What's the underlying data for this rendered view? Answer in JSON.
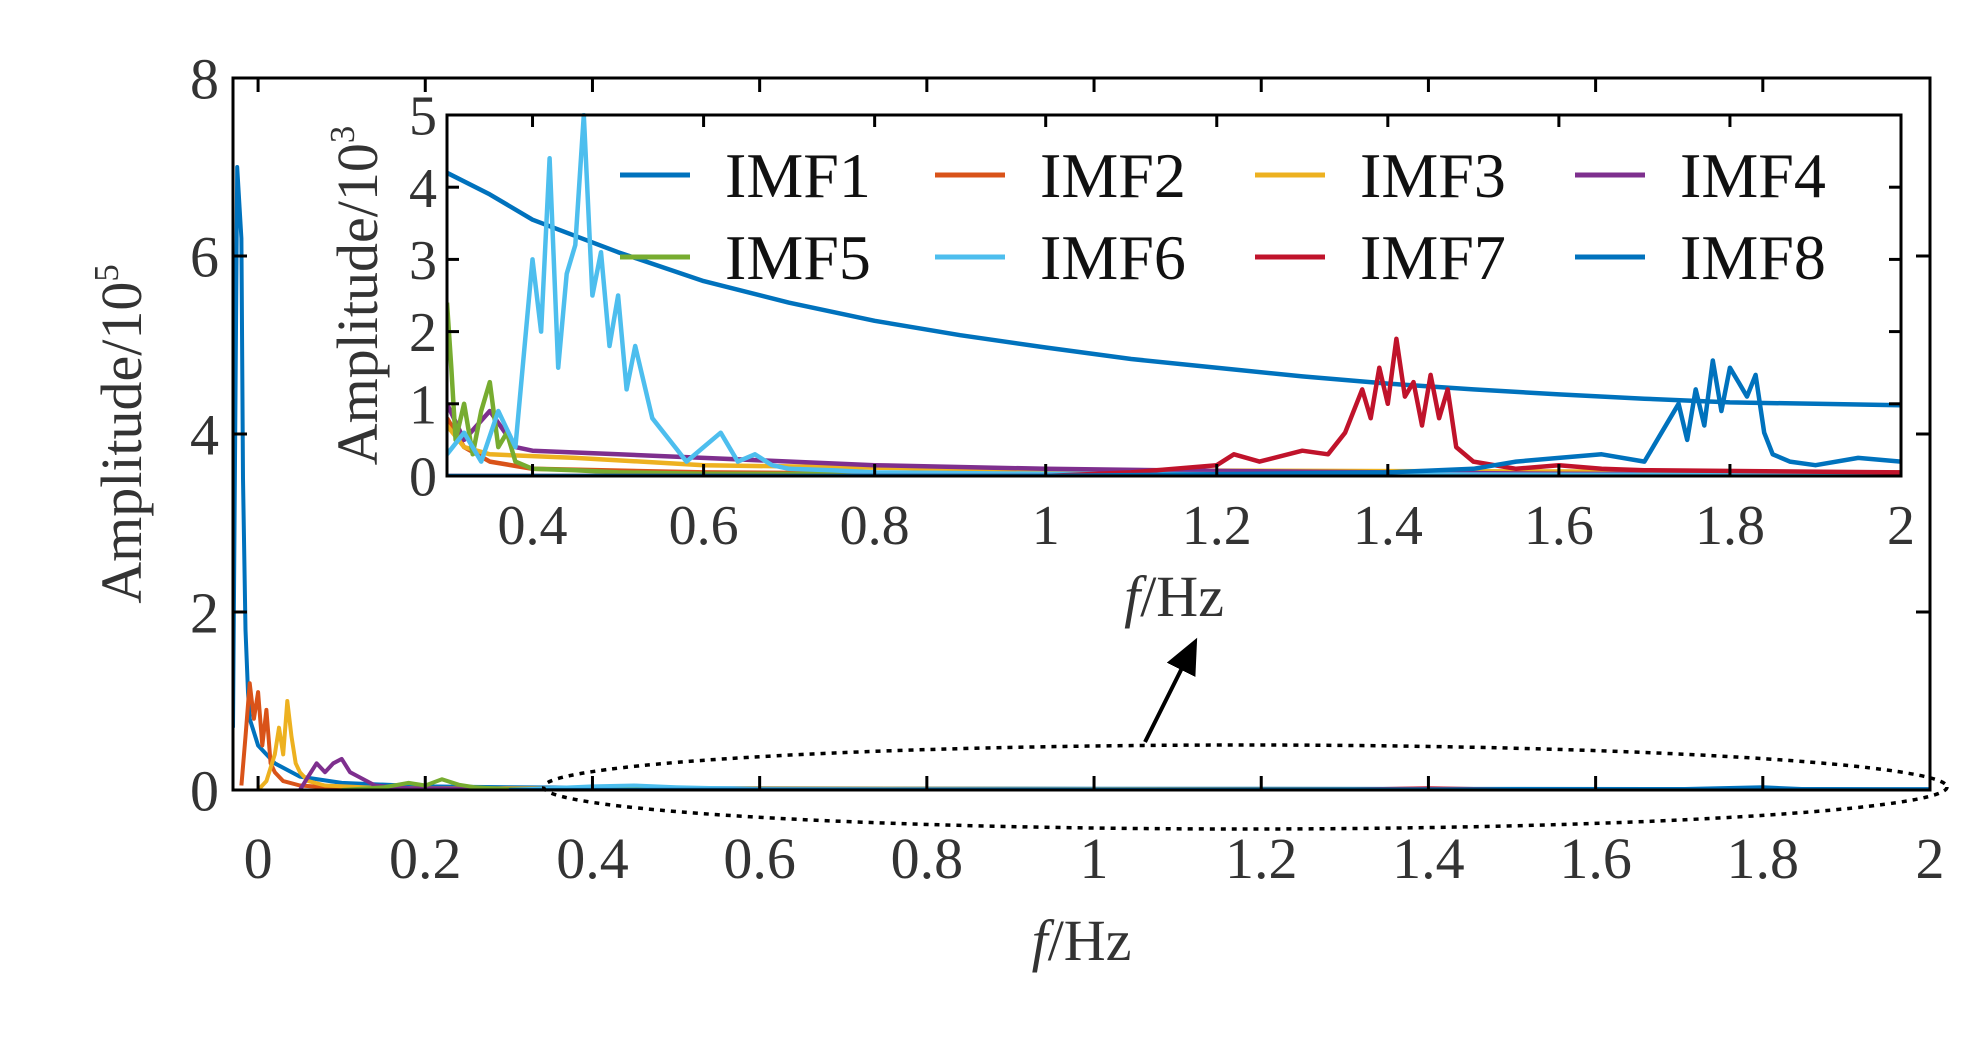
{
  "chart_data": [
    {
      "id": "main",
      "type": "line",
      "xlabel": "Hz",
      "xlabel_italic": "f",
      "xlabel_sep": "/",
      "ylabel": "Amplitude/10",
      "ylabel_exp": "5",
      "xlim": [
        -0.03,
        2.0
      ],
      "ylim": [
        0,
        8
      ],
      "xticks": [
        0,
        0.2,
        0.4,
        0.6,
        0.8,
        1,
        1.2,
        1.4,
        1.6,
        1.8,
        2
      ],
      "xtick_labels": [
        "0",
        "0.2",
        "0.4",
        "0.6",
        "0.8",
        "1",
        "1.2",
        "1.4",
        "1.6",
        "1.8",
        "2"
      ],
      "yticks": [
        0,
        2,
        4,
        6,
        8
      ],
      "ytick_labels": [
        "0",
        "2",
        "4",
        "6",
        "8"
      ],
      "series": [
        {
          "name": "IMF1",
          "color": "#0072BD",
          "x": [
            -0.03,
            -0.025,
            -0.02,
            -0.018,
            -0.015,
            -0.012,
            -0.01,
            0.0,
            0.02,
            0.05,
            0.1,
            0.2,
            0.3,
            0.5,
            1.0,
            1.5,
            2.0
          ],
          "y": [
            0.7,
            7.0,
            6.2,
            3.5,
            1.8,
            1.1,
            0.8,
            0.5,
            0.3,
            0.15,
            0.08,
            0.04,
            0.03,
            0.02,
            0.015,
            0.012,
            0.01
          ]
        },
        {
          "name": "IMF2",
          "color": "#D95319",
          "x": [
            -0.02,
            -0.015,
            -0.01,
            -0.005,
            0.0,
            0.005,
            0.01,
            0.015,
            0.02,
            0.03,
            0.05,
            0.1,
            2.0
          ],
          "y": [
            0.05,
            0.6,
            1.2,
            0.8,
            1.1,
            0.5,
            0.9,
            0.3,
            0.2,
            0.1,
            0.05,
            0.02,
            0.0
          ]
        },
        {
          "name": "IMF3",
          "color": "#EDB120",
          "x": [
            0.0,
            0.01,
            0.02,
            0.025,
            0.03,
            0.035,
            0.04,
            0.045,
            0.05,
            0.06,
            0.08,
            0.15,
            2.0
          ],
          "y": [
            0.0,
            0.1,
            0.4,
            0.7,
            0.4,
            1.0,
            0.6,
            0.3,
            0.2,
            0.1,
            0.05,
            0.02,
            0.0
          ]
        },
        {
          "name": "IMF4",
          "color": "#7E2F8E",
          "x": [
            0.05,
            0.06,
            0.07,
            0.08,
            0.09,
            0.1,
            0.11,
            0.12,
            0.14,
            0.18,
            0.3,
            2.0
          ],
          "y": [
            0.0,
            0.15,
            0.3,
            0.2,
            0.3,
            0.35,
            0.2,
            0.15,
            0.05,
            0.02,
            0.01,
            0.0
          ]
        },
        {
          "name": "IMF5",
          "color": "#77AC30",
          "x": [
            0.1,
            0.15,
            0.18,
            0.2,
            0.22,
            0.24,
            0.26,
            0.3,
            2.0
          ],
          "y": [
            0.0,
            0.03,
            0.08,
            0.05,
            0.12,
            0.06,
            0.03,
            0.01,
            0.0
          ]
        },
        {
          "name": "IMF6",
          "color": "#4DBEEE",
          "x": [
            0.3,
            0.4,
            0.45,
            0.5,
            0.6,
            2.0
          ],
          "y": [
            0.0,
            0.04,
            0.05,
            0.03,
            0.01,
            0.0
          ]
        },
        {
          "name": "IMF7",
          "color": "#C0132B",
          "x": [
            0.3,
            1.3,
            1.4,
            1.5,
            2.0
          ],
          "y": [
            0.0,
            0.005,
            0.02,
            0.005,
            0.0
          ]
        },
        {
          "name": "IMF8",
          "color": "#0072BD",
          "x": [
            0.3,
            1.7,
            1.8,
            1.85,
            2.0
          ],
          "y": [
            0.0,
            0.01,
            0.03,
            0.01,
            0.0
          ]
        }
      ],
      "annotation": {
        "type": "dashed-ellipse",
        "x_range": [
          0.35,
          2.0
        ],
        "y_center": 0.0,
        "arrow_to": "inset",
        "text": ""
      }
    },
    {
      "id": "inset",
      "type": "line",
      "xlabel": "Hz",
      "xlabel_italic": "f",
      "xlabel_sep": "/",
      "ylabel": "Amplitude/10",
      "ylabel_exp": "3",
      "xlim": [
        0.3,
        2.0
      ],
      "ylim": [
        0,
        5
      ],
      "xticks": [
        0.4,
        0.6,
        0.8,
        1,
        1.2,
        1.4,
        1.6,
        1.8,
        2
      ],
      "xtick_labels": [
        "0.4",
        "0.6",
        "0.8",
        "1",
        "1.2",
        "1.4",
        "1.6",
        "1.8",
        "2"
      ],
      "yticks": [
        0,
        1,
        2,
        3,
        4,
        5
      ],
      "ytick_labels": [
        "0",
        "1",
        "2",
        "3",
        "4",
        "5"
      ],
      "legend": {
        "placement": "top-right",
        "columns": 4
      },
      "series": [
        {
          "name": "IMF1",
          "color": "#0072BD",
          "x": [
            0.3,
            0.35,
            0.4,
            0.5,
            0.6,
            0.7,
            0.8,
            0.9,
            1.0,
            1.1,
            1.2,
            1.3,
            1.4,
            1.5,
            1.6,
            1.7,
            1.8,
            1.9,
            2.0
          ],
          "y": [
            4.2,
            3.9,
            3.55,
            3.1,
            2.7,
            2.4,
            2.15,
            1.95,
            1.78,
            1.62,
            1.5,
            1.38,
            1.28,
            1.2,
            1.13,
            1.07,
            1.02,
            1.0,
            0.98
          ]
        },
        {
          "name": "IMF2",
          "color": "#D95319",
          "x": [
            0.3,
            0.32,
            0.35,
            0.4,
            0.6,
            1.0,
            2.0
          ],
          "y": [
            0.8,
            0.4,
            0.2,
            0.1,
            0.05,
            0.02,
            0.01
          ]
        },
        {
          "name": "IMF3",
          "color": "#EDB120",
          "x": [
            0.3,
            0.32,
            0.35,
            0.45,
            0.6,
            1.0,
            2.0
          ],
          "y": [
            0.7,
            0.4,
            0.3,
            0.25,
            0.15,
            0.08,
            0.05
          ]
        },
        {
          "name": "IMF4",
          "color": "#7E2F8E",
          "x": [
            0.3,
            0.32,
            0.35,
            0.38,
            0.4,
            0.5,
            0.6,
            0.8,
            1.0,
            1.2,
            1.4,
            1.6,
            2.0
          ],
          "y": [
            1.0,
            0.5,
            0.9,
            0.4,
            0.35,
            0.3,
            0.25,
            0.15,
            0.1,
            0.07,
            0.05,
            0.03,
            0.02
          ]
        },
        {
          "name": "IMF5",
          "color": "#77AC30",
          "x": [
            0.3,
            0.305,
            0.31,
            0.32,
            0.33,
            0.34,
            0.35,
            0.36,
            0.37,
            0.38,
            0.4,
            0.45,
            0.5,
            0.6,
            2.0
          ],
          "y": [
            2.4,
            1.5,
            0.5,
            1.0,
            0.3,
            0.9,
            1.3,
            0.4,
            0.6,
            0.2,
            0.1,
            0.08,
            0.05,
            0.03,
            0.01
          ]
        },
        {
          "name": "IMF6",
          "color": "#4DBEEE",
          "x": [
            0.3,
            0.32,
            0.34,
            0.36,
            0.38,
            0.4,
            0.41,
            0.42,
            0.43,
            0.44,
            0.45,
            0.46,
            0.47,
            0.48,
            0.49,
            0.5,
            0.51,
            0.52,
            0.54,
            0.56,
            0.58,
            0.6,
            0.62,
            0.64,
            0.66,
            0.68,
            0.7,
            0.75,
            0.8,
            1.0,
            2.0
          ],
          "y": [
            0.3,
            0.6,
            0.2,
            0.9,
            0.4,
            3.0,
            2.0,
            4.4,
            1.5,
            2.8,
            3.2,
            5.0,
            2.5,
            3.1,
            1.8,
            2.5,
            1.2,
            1.8,
            0.8,
            0.5,
            0.2,
            0.4,
            0.6,
            0.2,
            0.3,
            0.15,
            0.1,
            0.08,
            0.05,
            0.03,
            0.01
          ]
        },
        {
          "name": "IMF7",
          "color": "#C0132B",
          "x": [
            0.3,
            1.0,
            1.1,
            1.2,
            1.22,
            1.25,
            1.3,
            1.33,
            1.35,
            1.37,
            1.38,
            1.39,
            1.4,
            1.41,
            1.42,
            1.43,
            1.44,
            1.45,
            1.46,
            1.47,
            1.48,
            1.5,
            1.55,
            1.6,
            1.65,
            1.7,
            2.0
          ],
          "y": [
            0.0,
            0.0,
            0.05,
            0.15,
            0.3,
            0.2,
            0.35,
            0.3,
            0.6,
            1.2,
            0.8,
            1.5,
            1.0,
            1.9,
            1.1,
            1.3,
            0.7,
            1.4,
            0.8,
            1.2,
            0.4,
            0.2,
            0.1,
            0.15,
            0.1,
            0.08,
            0.05
          ]
        },
        {
          "name": "IMF8",
          "color": "#0072BD",
          "x": [
            0.3,
            1.0,
            1.4,
            1.5,
            1.55,
            1.6,
            1.65,
            1.7,
            1.72,
            1.74,
            1.75,
            1.76,
            1.77,
            1.78,
            1.79,
            1.8,
            1.81,
            1.82,
            1.83,
            1.84,
            1.85,
            1.87,
            1.9,
            1.95,
            2.0
          ],
          "y": [
            0.0,
            0.0,
            0.05,
            0.1,
            0.2,
            0.25,
            0.3,
            0.2,
            0.6,
            1.0,
            0.5,
            1.2,
            0.7,
            1.6,
            0.9,
            1.5,
            1.3,
            1.1,
            1.4,
            0.6,
            0.3,
            0.2,
            0.15,
            0.25,
            0.2
          ]
        }
      ]
    }
  ]
}
